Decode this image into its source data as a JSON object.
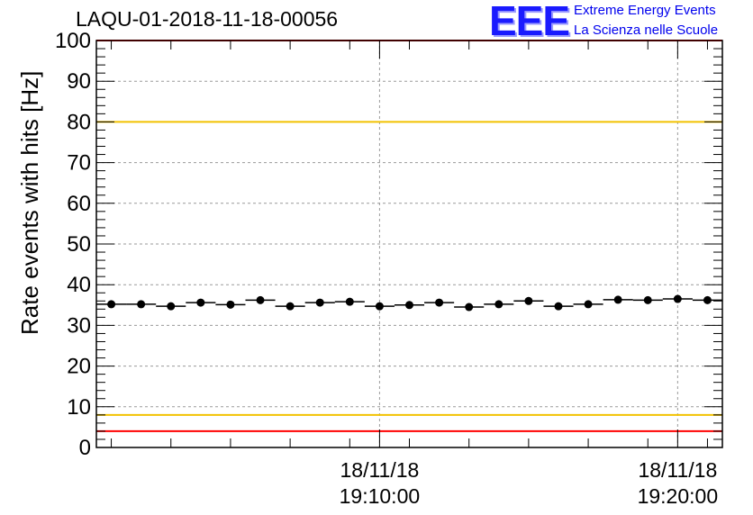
{
  "header": {
    "run_title": "LAQU-01-2018-11-18-00056",
    "logo_mark": "EEE",
    "logo_line1": "Extreme Energy Events",
    "logo_line2": "La Scienza nelle Scuole"
  },
  "chart_data": {
    "type": "scatter",
    "title": "LAQU-01-2018-11-18-00056",
    "ylabel": "Rate events with hits [Hz]",
    "xlabel": "",
    "ylim": [
      0,
      100
    ],
    "yticks": [
      0,
      10,
      20,
      30,
      40,
      50,
      60,
      70,
      80,
      90,
      100
    ],
    "xlim": [
      "18/11/18 19:00:30",
      "18/11/18 19:21:30"
    ],
    "xticks": [
      {
        "date": "18/11/18",
        "time": "19:10:00"
      },
      {
        "date": "18/11/18",
        "time": "19:20:00"
      }
    ],
    "grid": true,
    "series": [
      {
        "x": [
          "19:01:00",
          "19:02:00",
          "19:03:00",
          "19:04:00",
          "19:05:00",
          "19:06:00",
          "19:07:00",
          "19:08:00",
          "19:09:00",
          "19:10:00",
          "19:11:00",
          "19:12:00",
          "19:13:00",
          "19:14:00",
          "19:15:00",
          "19:16:00",
          "19:17:00",
          "19:18:00",
          "19:19:00",
          "19:20:00",
          "19:21:00"
        ],
        "values": [
          35.2,
          35.2,
          34.7,
          35.6,
          35.1,
          36.2,
          34.7,
          35.6,
          35.8,
          34.7,
          35.0,
          35.6,
          34.5,
          35.2,
          36.0,
          34.7,
          35.2,
          36.3,
          36.2,
          36.5,
          36.2
        ],
        "x_error_half_width_minutes": 0.5
      }
    ],
    "reference_lines": [
      {
        "y": 100,
        "color": "#ff0000"
      },
      {
        "y": 80,
        "color": "#f2c200"
      },
      {
        "y": 8,
        "color": "#f2c200"
      },
      {
        "y": 4,
        "color": "#ff0000"
      }
    ],
    "colors": {
      "markers": "#000000",
      "grid": "#9a9a9a"
    }
  }
}
